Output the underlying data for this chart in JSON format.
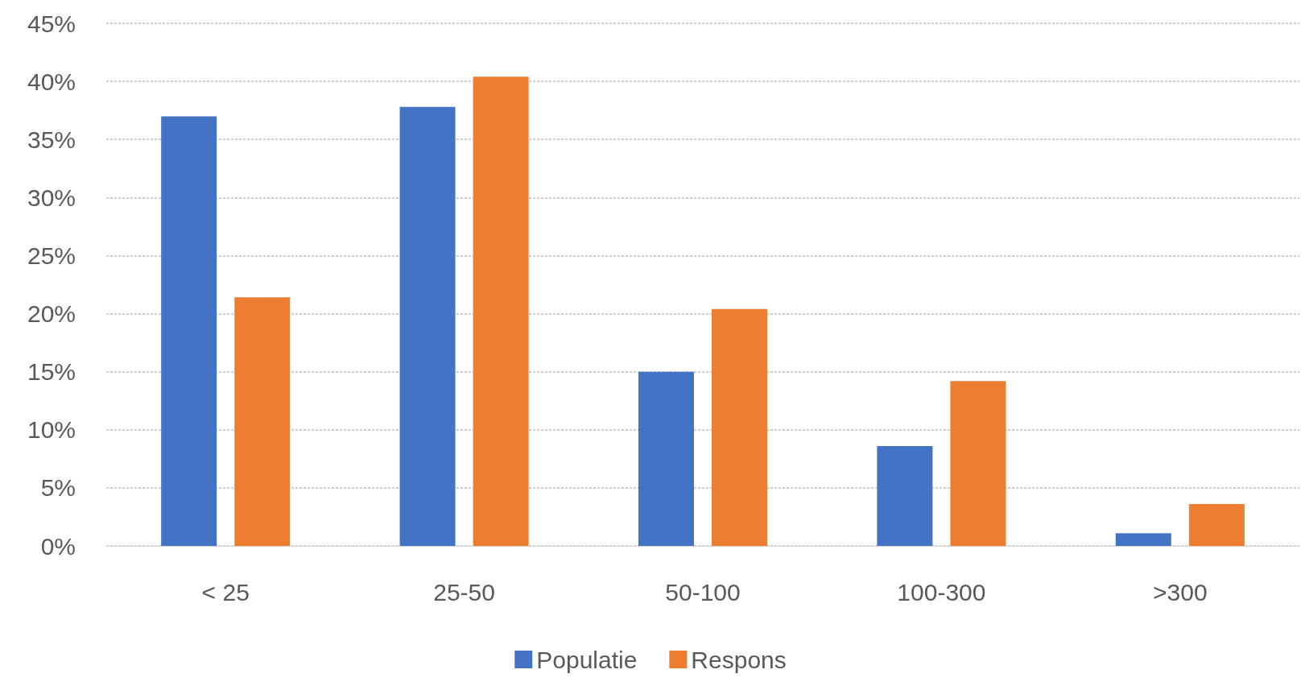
{
  "chart_data": {
    "type": "bar",
    "categories": [
      "< 25",
      "25-50",
      "50-100",
      "100-300",
      ">300"
    ],
    "series": [
      {
        "name": "Populatie",
        "color": "#4472c4",
        "values": [
          37.0,
          37.8,
          15.0,
          8.6,
          1.1
        ]
      },
      {
        "name": "Respons",
        "color": "#ed7d31",
        "values": [
          21.4,
          40.4,
          20.4,
          14.2,
          3.6
        ]
      }
    ],
    "ylim": [
      0,
      45
    ],
    "yticks": [
      {
        "value": 0,
        "label": "0%"
      },
      {
        "value": 5,
        "label": "5%"
      },
      {
        "value": 10,
        "label": "10%"
      },
      {
        "value": 15,
        "label": "15%"
      },
      {
        "value": 20,
        "label": "20%"
      },
      {
        "value": 25,
        "label": "25%"
      },
      {
        "value": 30,
        "label": "30%"
      },
      {
        "value": 35,
        "label": "35%"
      },
      {
        "value": 40,
        "label": "40%"
      },
      {
        "value": 45,
        "label": "45%"
      }
    ],
    "grid": "y",
    "legend": "bottom"
  }
}
